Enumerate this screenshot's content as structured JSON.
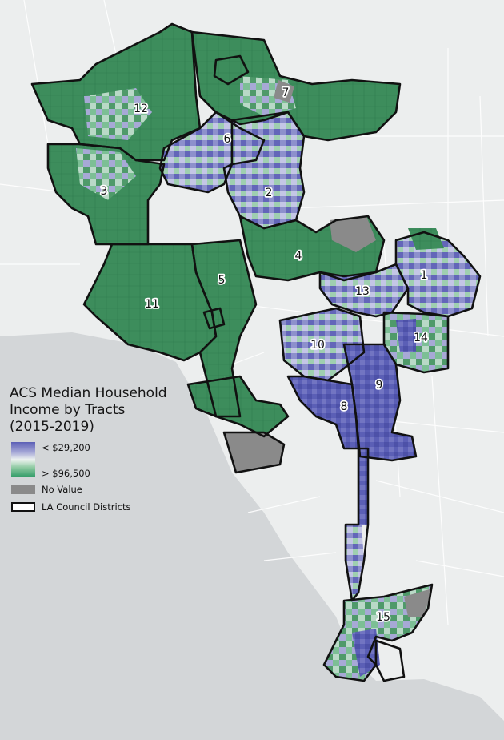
{
  "legend": {
    "title_line1": "ACS Median Household",
    "title_line2": "Income by Tracts",
    "title_line3": "(2015-2019)",
    "low_label": "< $29,200",
    "high_label": "> $96,500",
    "no_value_label": "No Value",
    "districts_label": "LA Council Districts"
  },
  "colors": {
    "low": "#5b5fb6",
    "high": "#2f9a66",
    "no_value": "#8a8a8a",
    "ocean": "#d3d6d8",
    "land": "#eceeee",
    "boundary": "#111111"
  },
  "districts": [
    {
      "id": "1",
      "label": "1",
      "income": "low"
    },
    {
      "id": "2",
      "label": "2",
      "income": "mixed"
    },
    {
      "id": "3",
      "label": "3",
      "income": "high"
    },
    {
      "id": "4",
      "label": "4",
      "income": "high"
    },
    {
      "id": "5",
      "label": "5",
      "income": "high"
    },
    {
      "id": "6",
      "label": "6",
      "income": "low"
    },
    {
      "id": "7",
      "label": "7",
      "income": "high"
    },
    {
      "id": "8",
      "label": "8",
      "income": "low"
    },
    {
      "id": "9",
      "label": "9",
      "income": "low"
    },
    {
      "id": "10",
      "label": "10",
      "income": "low"
    },
    {
      "id": "11",
      "label": "11",
      "income": "high"
    },
    {
      "id": "12",
      "label": "12",
      "income": "high"
    },
    {
      "id": "13",
      "label": "13",
      "income": "low"
    },
    {
      "id": "14",
      "label": "14",
      "income": "mixed"
    },
    {
      "id": "15",
      "label": "15",
      "income": "mixed"
    }
  ]
}
